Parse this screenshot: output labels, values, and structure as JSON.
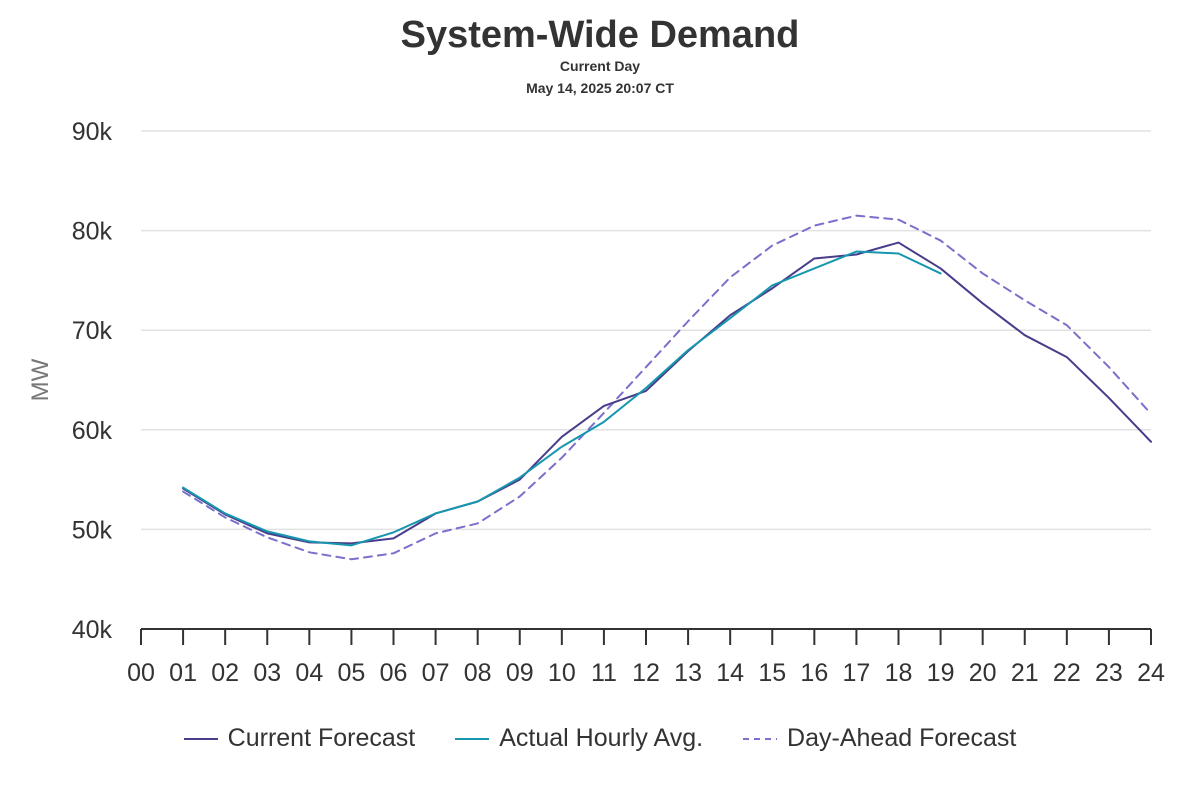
{
  "chart_data": {
    "type": "line",
    "title": "System-Wide Demand",
    "subtitle": "Current Day",
    "timestamp": "May 14, 2025 20:07 CT",
    "ylabel": "MW",
    "xlabel": "",
    "categories": [
      "00",
      "01",
      "02",
      "03",
      "04",
      "05",
      "06",
      "07",
      "08",
      "09",
      "10",
      "11",
      "12",
      "13",
      "14",
      "15",
      "16",
      "17",
      "18",
      "19",
      "20",
      "21",
      "22",
      "23",
      "24"
    ],
    "ylim": [
      40000,
      90000
    ],
    "yticks": [
      40000,
      50000,
      60000,
      70000,
      80000,
      90000
    ],
    "ytick_labels": [
      "40k",
      "50k",
      "60k",
      "70k",
      "80k",
      "90k"
    ],
    "grid": true,
    "legend_position": "bottom",
    "series": [
      {
        "name": "Current Forecast",
        "color": "#483D8B",
        "dash": "solid",
        "x": [
          1,
          2,
          3,
          4,
          5,
          6,
          7,
          8,
          9,
          10,
          11,
          12,
          13,
          14,
          15,
          16,
          17,
          18,
          19,
          20,
          21,
          22,
          23,
          24
        ],
        "values": [
          54100,
          51500,
          49600,
          48700,
          48600,
          49100,
          51600,
          52800,
          55000,
          59300,
          62400,
          63900,
          67900,
          71500,
          74200,
          77200,
          77600,
          78800,
          76200,
          72700,
          69500,
          67300,
          63200,
          58800
        ]
      },
      {
        "name": "Actual Hourly Avg.",
        "color": "#1696AF",
        "dash": "solid",
        "x": [
          1,
          2,
          3,
          4,
          5,
          6,
          7,
          8,
          9,
          10,
          11,
          12,
          13,
          14,
          15,
          16,
          17,
          18,
          19
        ],
        "values": [
          54200,
          51600,
          49800,
          48800,
          48400,
          49700,
          51600,
          52800,
          55200,
          58300,
          60800,
          64200,
          68000,
          71200,
          74500,
          76200,
          77900,
          77700,
          75700
        ]
      },
      {
        "name": "Day-Ahead Forecast",
        "color": "#7B6FCB",
        "dash": "dashed",
        "x": [
          1,
          2,
          3,
          4,
          5,
          6,
          7,
          8,
          9,
          10,
          11,
          12,
          13,
          14,
          15,
          16,
          17,
          18,
          19,
          20,
          21,
          22,
          23,
          24
        ],
        "values": [
          53800,
          51200,
          49200,
          47700,
          47000,
          47600,
          49600,
          50600,
          53300,
          57200,
          61700,
          66300,
          70900,
          75300,
          78500,
          80500,
          81500,
          81100,
          79000,
          75700,
          73000,
          70500,
          66300,
          61600
        ]
      }
    ]
  }
}
